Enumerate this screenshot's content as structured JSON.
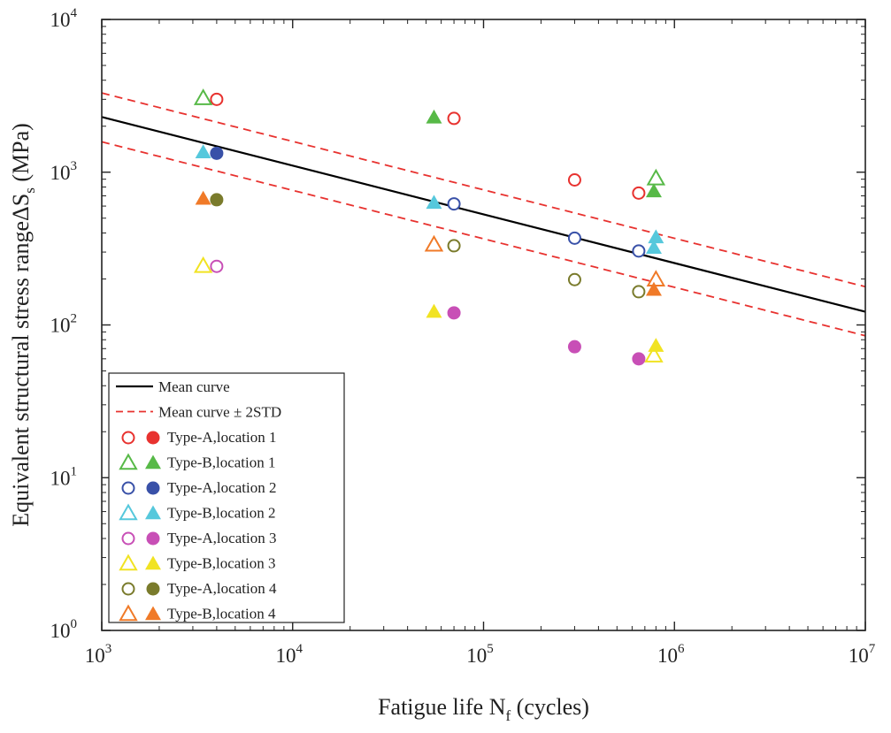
{
  "chart_data": {
    "type": "scatter",
    "xlabel": "Fatigue life N",
    "xlabel_sub": "f",
    "xlabel_unit": "(cycles)",
    "ylabel": "Equivalent structural stress rangeΔS",
    "ylabel_sub": "s",
    "ylabel_unit": "(MPa)",
    "x_scale": "log",
    "y_scale": "log",
    "xlim": [
      1000,
      10000000
    ],
    "ylim": [
      1,
      10000
    ],
    "x_ticks": [
      {
        "value": 1000,
        "base": "10",
        "exp": "3"
      },
      {
        "value": 10000,
        "base": "10",
        "exp": "4"
      },
      {
        "value": 100000,
        "base": "10",
        "exp": "5"
      },
      {
        "value": 1000000,
        "base": "10",
        "exp": "6"
      },
      {
        "value": 10000000,
        "base": "10",
        "exp": "7"
      }
    ],
    "y_ticks": [
      {
        "value": 1,
        "base": "10",
        "exp": "0"
      },
      {
        "value": 10,
        "base": "10",
        "exp": "1"
      },
      {
        "value": 100,
        "base": "10",
        "exp": "2"
      },
      {
        "value": 1000,
        "base": "10",
        "exp": "3"
      },
      {
        "value": 10000,
        "base": "10",
        "exp": "4"
      }
    ],
    "grid": false,
    "legend_position": "bottom-left",
    "lines": [
      {
        "name": "Mean curve",
        "style": "solid",
        "color": "#000000",
        "points": [
          [
            1000,
            2300
          ],
          [
            10000000,
            122
          ]
        ]
      },
      {
        "name": "Mean curve ± 2STD",
        "style": "dashed",
        "color": "#e8322f",
        "points": [
          [
            1000,
            3300
          ],
          [
            10000000,
            178
          ]
        ]
      },
      {
        "name": "",
        "style": "dashed",
        "color": "#e8322f",
        "points": [
          [
            1000,
            1580
          ],
          [
            10000000,
            85
          ]
        ]
      }
    ],
    "series": [
      {
        "name": "Type-A,location 1",
        "marker": "circle",
        "color": "#e8322f",
        "open": [
          [
            4000,
            3000
          ],
          [
            70000,
            2250
          ],
          [
            300000,
            890
          ],
          [
            650000,
            730
          ]
        ],
        "filled": []
      },
      {
        "name": "Type-B,location 1",
        "marker": "triangle",
        "color": "#57b947",
        "open": [
          [
            3400,
            3050
          ],
          [
            800000,
            910
          ]
        ],
        "filled": [
          [
            55000,
            2280
          ],
          [
            780000,
            750
          ]
        ]
      },
      {
        "name": "Type-A,location 2",
        "marker": "circle",
        "color": "#3951a8",
        "open": [
          [
            70000,
            620
          ],
          [
            300000,
            370
          ],
          [
            650000,
            305
          ]
        ],
        "filled": [
          [
            4000,
            1330
          ]
        ]
      },
      {
        "name": "Type-B,location 2",
        "marker": "triangle",
        "color": "#56c8dc",
        "open": [],
        "filled": [
          [
            3400,
            1350
          ],
          [
            55000,
            630
          ],
          [
            800000,
            375
          ],
          [
            780000,
            320
          ]
        ]
      },
      {
        "name": "Type-A,location 3",
        "marker": "circle",
        "color": "#c84fb6",
        "open": [
          [
            4000,
            242
          ]
        ],
        "filled": [
          [
            70000,
            120
          ],
          [
            300000,
            72
          ],
          [
            650000,
            60
          ]
        ]
      },
      {
        "name": "Type-B,location 3",
        "marker": "triangle",
        "color": "#f1e322",
        "open": [
          [
            3400,
            243
          ],
          [
            780000,
            63
          ]
        ],
        "filled": [
          [
            55000,
            122
          ],
          [
            800000,
            73
          ]
        ]
      },
      {
        "name": "Type-A,location 4",
        "marker": "circle",
        "color": "#7a7b2c",
        "open": [
          [
            70000,
            330
          ],
          [
            300000,
            198
          ],
          [
            650000,
            165
          ]
        ],
        "filled": [
          [
            4000,
            660
          ]
        ]
      },
      {
        "name": "Type-B,location 4",
        "marker": "triangle",
        "color": "#f07a28",
        "open": [
          [
            55000,
            335
          ],
          [
            800000,
            198
          ]
        ],
        "filled": [
          [
            3400,
            670
          ],
          [
            780000,
            170
          ]
        ]
      }
    ]
  }
}
